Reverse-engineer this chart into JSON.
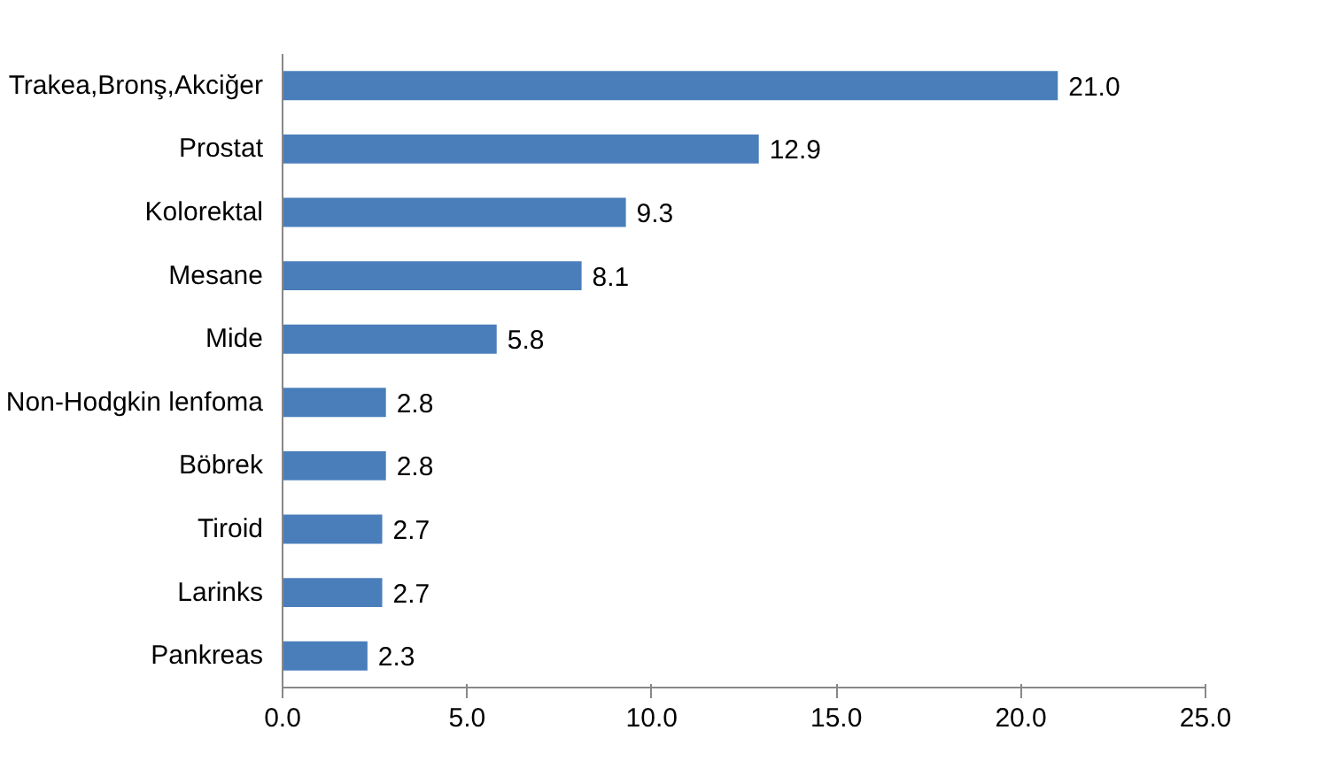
{
  "chart_data": {
    "type": "bar",
    "orientation": "horizontal",
    "categories": [
      "Trakea,Bronş,Akciğer",
      "Prostat",
      "Kolorektal",
      "Mesane",
      "Mide",
      "Non-Hodgkin lenfoma",
      "Böbrek",
      "Tiroid",
      "Larinks",
      "Pankreas"
    ],
    "values": [
      21.0,
      12.9,
      9.3,
      8.1,
      5.8,
      2.8,
      2.8,
      2.7,
      2.7,
      2.3
    ],
    "value_labels": [
      "21.0",
      "12.9",
      "9.3",
      "8.1",
      "5.8",
      "2.8",
      "2.8",
      "2.7",
      "2.7",
      "2.3"
    ],
    "color": "#4a7ebb",
    "xlim": [
      0,
      25
    ],
    "xticks": [
      {
        "value": 0,
        "label": "0.0"
      },
      {
        "value": 5,
        "label": "5.0"
      },
      {
        "value": 10,
        "label": "10.0"
      },
      {
        "value": 15,
        "label": "15.0"
      },
      {
        "value": 20,
        "label": "20.0"
      },
      {
        "value": 25,
        "label": "25.0"
      }
    ],
    "grid": false
  }
}
